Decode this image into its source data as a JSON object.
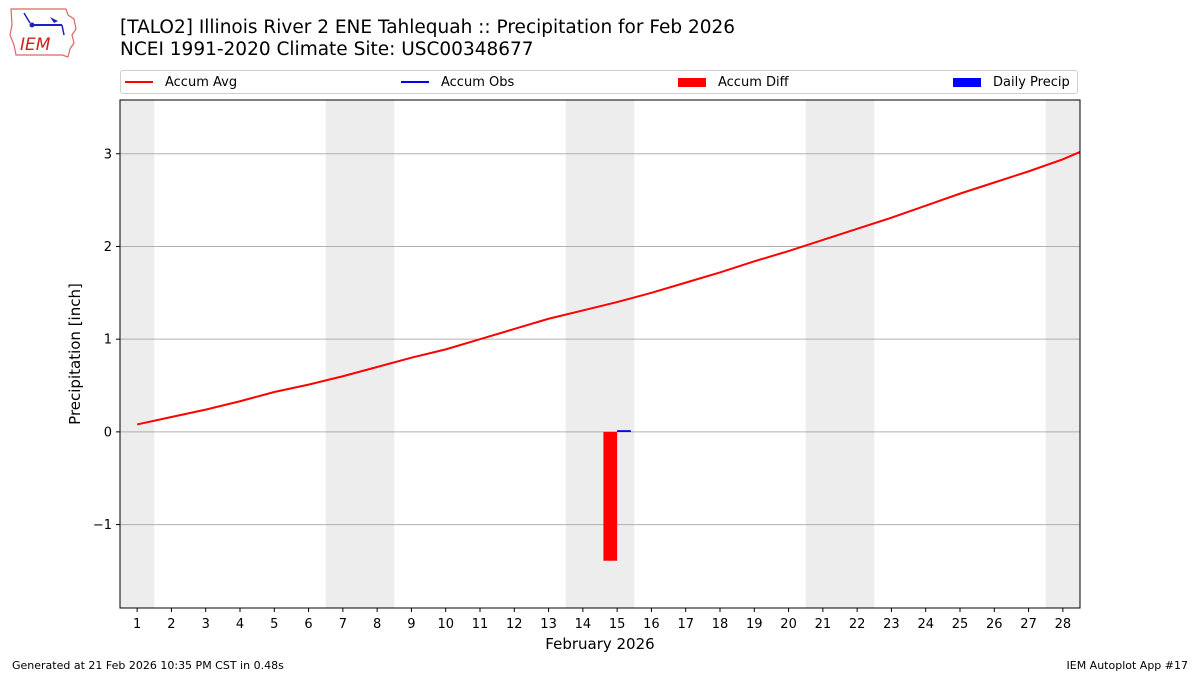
{
  "header": {
    "title_line1": "[TALO2] Illinois River 2 ENE Tahlequah :: Precipitation for Feb 2026",
    "title_line2": "NCEI 1991-2020 Climate Site: USC00348677",
    "logo_text": "IEM"
  },
  "legend": [
    {
      "label": "Accum Avg",
      "type": "line",
      "color": "#ff0000"
    },
    {
      "label": "Accum Obs",
      "type": "line",
      "color": "#0000ff"
    },
    {
      "label": "Accum Diff",
      "type": "box",
      "color": "#ff0000"
    },
    {
      "label": "Daily Precip",
      "type": "box",
      "color": "#0000ff"
    }
  ],
  "footer": {
    "generated": "Generated at 21 Feb 2026 10:35 PM CST in 0.48s",
    "app": "IEM Autoplot App #17"
  },
  "colors": {
    "accum_avg": "#ff0000",
    "accum_obs": "#0000ff",
    "accum_diff": "#ff0000",
    "daily_precip": "#0000ff",
    "weekend_shade": "#ededed",
    "grid": "#b0b0b0"
  },
  "chart_data": {
    "type": "line",
    "title": "[TALO2] Illinois River 2 ENE Tahlequah :: Precipitation for Feb 2026",
    "subtitle": "NCEI 1991-2020 Climate Site: USC00348677",
    "xlabel": "February 2026",
    "ylabel": "Precipitation [inch]",
    "xlim": [
      0.5,
      28.5
    ],
    "ylim": [
      -1.9,
      3.58
    ],
    "yticks": [
      -1,
      0,
      1,
      2,
      3
    ],
    "ytick_labels": [
      "−1",
      "0",
      "1",
      "2",
      "3"
    ],
    "xticks": [
      1,
      2,
      3,
      4,
      5,
      6,
      7,
      8,
      9,
      10,
      11,
      12,
      13,
      14,
      15,
      16,
      17,
      18,
      19,
      20,
      21,
      22,
      23,
      24,
      25,
      26,
      27,
      28
    ],
    "grid": "y",
    "legend_position": "top",
    "weekend_shading": [
      [
        0.5,
        1.5
      ],
      [
        6.5,
        8.5
      ],
      [
        13.5,
        15.5
      ],
      [
        20.5,
        22.5
      ],
      [
        27.5,
        28.5
      ]
    ],
    "x": [
      1,
      2,
      3,
      4,
      5,
      6,
      7,
      8,
      9,
      10,
      11,
      12,
      13,
      14,
      15,
      16,
      17,
      18,
      19,
      20,
      21,
      22,
      23,
      24,
      25,
      26,
      27,
      28
    ],
    "series": [
      {
        "name": "Accum Avg",
        "type": "line",
        "values": [
          0.08,
          0.16,
          0.24,
          0.33,
          0.43,
          0.51,
          0.6,
          0.7,
          0.8,
          0.89,
          1.0,
          1.11,
          1.22,
          1.31,
          1.4,
          1.5,
          1.61,
          1.72,
          1.84,
          1.95,
          2.07,
          2.19,
          2.31,
          2.44,
          2.57,
          2.69,
          2.81,
          2.94
        ]
      },
      {
        "name": "Accum Obs",
        "type": "line",
        "x": [
          15
        ],
        "values": [
          0.01
        ]
      },
      {
        "name": "Accum Diff",
        "type": "bar",
        "x": [
          15
        ],
        "values": [
          -1.39
        ]
      },
      {
        "name": "Daily Precip",
        "type": "bar",
        "x": [
          15
        ],
        "values": [
          0.01
        ]
      }
    ]
  }
}
